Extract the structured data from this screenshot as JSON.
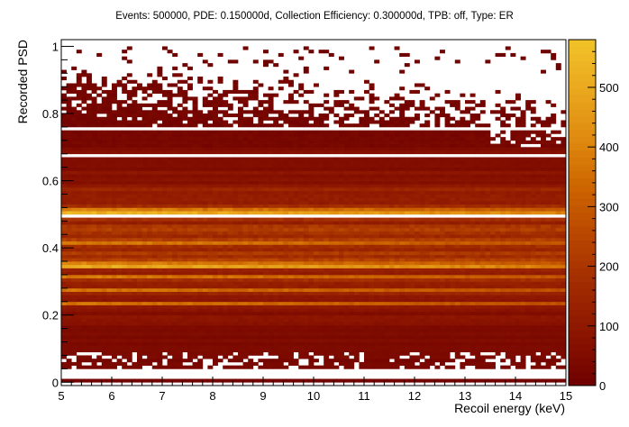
{
  "chart_data": {
    "type": "heatmap",
    "title": "Events: 500000, PDE: 0.150000d, Collection Efficiency: 0.300000d, TPB: off, Type: ER",
    "xlabel": "Recoil energy (keV)",
    "ylabel": "Recorded PSD",
    "xlim": [
      5,
      15
    ],
    "ylim": [
      -0.01,
      1.02
    ],
    "zlim": [
      0,
      580
    ],
    "x_ticks": [
      "5",
      "6",
      "7",
      "8",
      "9",
      "10",
      "11",
      "12",
      "13",
      "14",
      "15"
    ],
    "y_ticks": [
      "0",
      "0.2",
      "0.4",
      "0.6",
      "0.8",
      "1"
    ],
    "z_ticks": [
      "0",
      "100",
      "200",
      "300",
      "400",
      "500"
    ],
    "x_bins": 100,
    "y_bins": 100,
    "colormap": [
      "#6e0000",
      "#8a1400",
      "#a02a00",
      "#b84500",
      "#cc6400",
      "#df8a0f",
      "#eaa81e",
      "#f0c228"
    ],
    "grid": false,
    "legend": "colorbar-right"
  }
}
